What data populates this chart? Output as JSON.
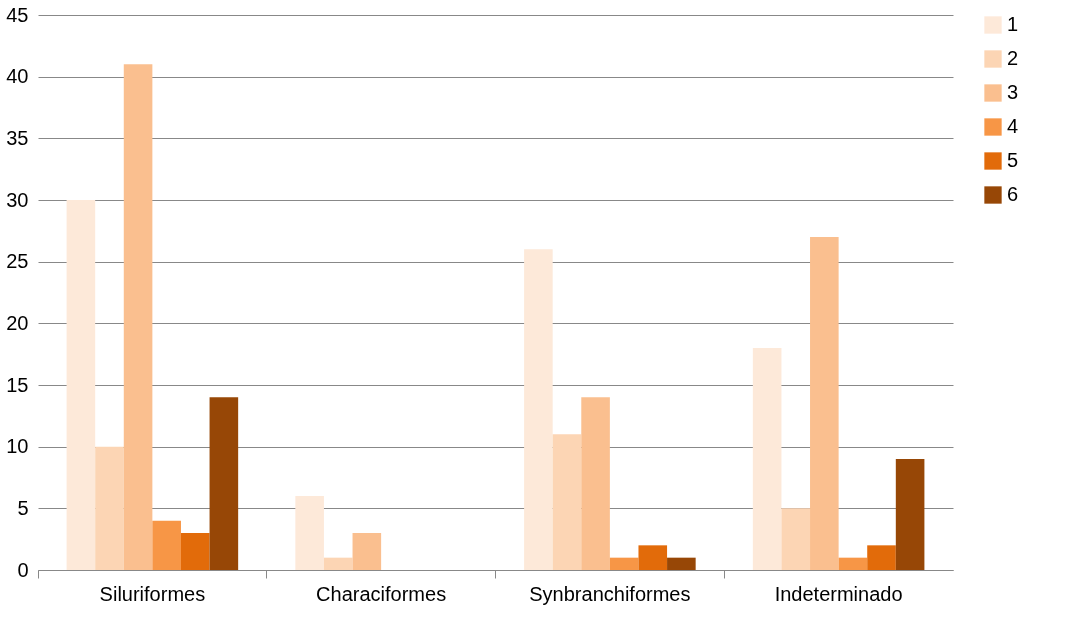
{
  "chart_data": {
    "type": "bar",
    "categories": [
      "Siluriformes",
      "Characiformes",
      "Synbranchiformes",
      "Indeterminado"
    ],
    "series": [
      {
        "name": "1",
        "color": "#fde9d9",
        "values": [
          30,
          6,
          26,
          18
        ]
      },
      {
        "name": "2",
        "color": "#fcd5b4",
        "values": [
          10,
          1,
          11,
          5
        ]
      },
      {
        "name": "3",
        "color": "#fabf8f",
        "values": [
          41,
          3,
          14,
          27
        ]
      },
      {
        "name": "4",
        "color": "#f79646",
        "values": [
          4,
          0,
          1,
          1
        ]
      },
      {
        "name": "5",
        "color": "#e26b0a",
        "values": [
          3,
          0,
          2,
          2
        ]
      },
      {
        "name": "6",
        "color": "#974706",
        "values": [
          14,
          0,
          1,
          9
        ]
      }
    ],
    "ylim": [
      0,
      45
    ],
    "yticks": [
      0,
      5,
      10,
      15,
      20,
      25,
      30,
      35,
      40,
      45
    ],
    "grid": "y",
    "legend": "right"
  }
}
